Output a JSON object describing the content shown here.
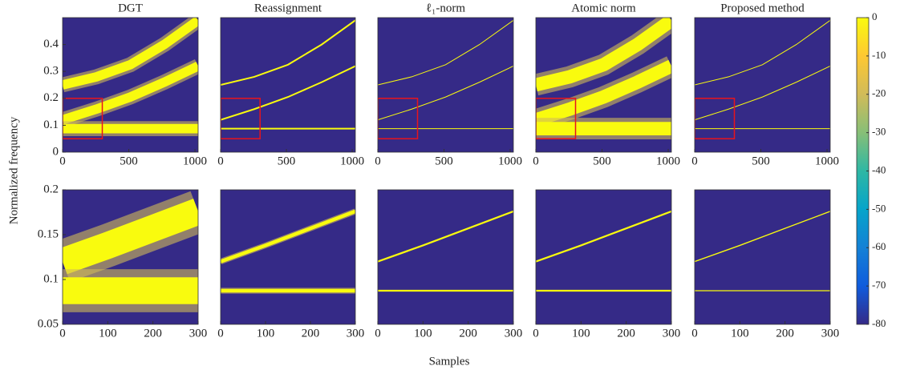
{
  "figure": {
    "xlabel": "Samples",
    "ylabel": "Normalized frequency"
  },
  "colorbar": {
    "clim": [
      -80,
      0
    ],
    "ticks": [
      0,
      -10,
      -20,
      -30,
      -40,
      -50,
      -60,
      -70,
      -80
    ],
    "colormap": [
      "#352a87",
      "#0f5cdd",
      "#1481d6",
      "#06a4ca",
      "#2eb7a4",
      "#87bf77",
      "#d1bb59",
      "#fec832",
      "#f9fb0e"
    ]
  },
  "chart_data": [
    {
      "type": "spectrogram",
      "title": "DGT",
      "xlim": [
        0,
        1024
      ],
      "xticks": [
        0,
        500,
        1000
      ],
      "ylim": [
        0,
        0.5
      ],
      "yticks": [
        0,
        0.1,
        0.2,
        0.3,
        0.4
      ],
      "ridge_width": 0.035,
      "zoom_box": {
        "x": [
          0,
          300
        ],
        "y": [
          0.05,
          0.2
        ]
      },
      "ridges": [
        {
          "x": [
            0,
            256,
            512,
            768,
            1024
          ],
          "y": [
            0.12,
            0.16,
            0.205,
            0.26,
            0.32
          ]
        },
        {
          "x": [
            0,
            256,
            512,
            768,
            1024
          ],
          "y": [
            0.25,
            0.28,
            0.325,
            0.4,
            0.49
          ]
        },
        {
          "x": [
            0,
            1024
          ],
          "y": [
            0.0875,
            0.0875
          ]
        }
      ]
    },
    {
      "type": "spectrogram",
      "title": "Reassignment",
      "xlim": [
        0,
        1024
      ],
      "xticks": [
        0,
        500,
        1000
      ],
      "ylim": [
        0,
        0.5
      ],
      "ridge_width": 0.006,
      "zoom_box": {
        "x": [
          0,
          300
        ],
        "y": [
          0.05,
          0.2
        ]
      },
      "ridges": [
        {
          "x": [
            0,
            256,
            512,
            768,
            1024
          ],
          "y": [
            0.12,
            0.16,
            0.205,
            0.26,
            0.32
          ]
        },
        {
          "x": [
            0,
            256,
            512,
            768,
            1024
          ],
          "y": [
            0.25,
            0.28,
            0.325,
            0.4,
            0.49
          ]
        },
        {
          "x": [
            0,
            1024
          ],
          "y": [
            0.0875,
            0.0875
          ]
        }
      ]
    },
    {
      "type": "spectrogram",
      "title": "ℓ₁-norm",
      "xlim": [
        0,
        1024
      ],
      "xticks": [
        0,
        500,
        1000
      ],
      "ylim": [
        0,
        0.5
      ],
      "ridge_width": 0.003,
      "zoom_box": {
        "x": [
          0,
          300
        ],
        "y": [
          0.05,
          0.2
        ]
      },
      "ridges": [
        {
          "x": [
            0,
            256,
            512,
            768,
            1024
          ],
          "y": [
            0.12,
            0.16,
            0.205,
            0.26,
            0.32
          ]
        },
        {
          "x": [
            0,
            256,
            512,
            768,
            1024
          ],
          "y": [
            0.25,
            0.28,
            0.325,
            0.4,
            0.49
          ]
        },
        {
          "x": [
            0,
            1024
          ],
          "y": [
            0.0875,
            0.0875
          ]
        }
      ]
    },
    {
      "type": "spectrogram",
      "title": "Atomic norm",
      "xlim": [
        0,
        1024
      ],
      "xticks": [
        0,
        500,
        1000
      ],
      "ylim": [
        0,
        0.5
      ],
      "ridge_width": 0.05,
      "zoom_box": {
        "x": [
          0,
          300
        ],
        "y": [
          0.05,
          0.2
        ]
      },
      "ridges": [
        {
          "x": [
            0,
            256,
            512,
            768,
            1024
          ],
          "y": [
            0.12,
            0.16,
            0.205,
            0.26,
            0.32
          ]
        },
        {
          "x": [
            0,
            256,
            512,
            768,
            1024
          ],
          "y": [
            0.25,
            0.28,
            0.325,
            0.4,
            0.49
          ]
        },
        {
          "x": [
            0,
            1024
          ],
          "y": [
            0.0875,
            0.0875
          ]
        }
      ]
    },
    {
      "type": "spectrogram",
      "title": "Proposed method",
      "xlim": [
        0,
        1024
      ],
      "xticks": [
        0,
        500,
        1000
      ],
      "ylim": [
        0,
        0.5
      ],
      "ridge_width": 0.003,
      "zoom_box": {
        "x": [
          0,
          300
        ],
        "y": [
          0.05,
          0.2
        ]
      },
      "ridges": [
        {
          "x": [
            0,
            256,
            512,
            768,
            1024
          ],
          "y": [
            0.12,
            0.16,
            0.205,
            0.26,
            0.32
          ]
        },
        {
          "x": [
            0,
            256,
            512,
            768,
            1024
          ],
          "y": [
            0.25,
            0.28,
            0.325,
            0.4,
            0.49
          ]
        },
        {
          "x": [
            0,
            1024
          ],
          "y": [
            0.0875,
            0.0875
          ]
        }
      ]
    },
    {
      "type": "spectrogram",
      "xlim": [
        0,
        300
      ],
      "xticks": [
        0,
        100,
        200,
        300
      ],
      "ylim": [
        0.05,
        0.2
      ],
      "yticks": [
        0.05,
        0.1,
        0.15,
        0.2
      ],
      "ridge_width": 0.03,
      "ridges": [
        {
          "x": [
            0,
            100,
            200,
            300
          ],
          "y": [
            0.12,
            0.138,
            0.157,
            0.176
          ]
        },
        {
          "x": [
            0,
            300
          ],
          "y": [
            0.0875,
            0.0875
          ]
        }
      ]
    },
    {
      "type": "spectrogram",
      "xlim": [
        0,
        300
      ],
      "xticks": [
        0,
        100,
        200,
        300
      ],
      "ylim": [
        0.05,
        0.2
      ],
      "ridge_width": 0.004,
      "ridges": [
        {
          "x": [
            0,
            100,
            200,
            300
          ],
          "y": [
            0.12,
            0.138,
            0.157,
            0.176
          ]
        },
        {
          "x": [
            0,
            300
          ],
          "y": [
            0.0875,
            0.0875
          ]
        }
      ]
    },
    {
      "type": "spectrogram",
      "xlim": [
        0,
        300
      ],
      "xticks": [
        0,
        100,
        200,
        300
      ],
      "ylim": [
        0.05,
        0.2
      ],
      "ridge_width": 0.002,
      "ridges": [
        {
          "x": [
            0,
            100,
            200,
            300
          ],
          "y": [
            0.12,
            0.138,
            0.157,
            0.176
          ]
        },
        {
          "x": [
            0,
            300
          ],
          "y": [
            0.0875,
            0.0875
          ]
        }
      ]
    },
    {
      "type": "spectrogram",
      "xlim": [
        0,
        300
      ],
      "xticks": [
        0,
        100,
        200,
        300
      ],
      "ylim": [
        0.05,
        0.2
      ],
      "ridge_width": 0.002,
      "ridges": [
        {
          "x": [
            0,
            100,
            200,
            300
          ],
          "y": [
            0.12,
            0.138,
            0.157,
            0.176
          ]
        },
        {
          "x": [
            0,
            300
          ],
          "y": [
            0.0875,
            0.0875
          ]
        }
      ]
    },
    {
      "type": "spectrogram",
      "xlim": [
        0,
        300
      ],
      "xticks": [
        0,
        100,
        200,
        300
      ],
      "ylim": [
        0.05,
        0.2
      ],
      "ridge_width": 0.0012,
      "ridges": [
        {
          "x": [
            0,
            100,
            200,
            300
          ],
          "y": [
            0.12,
            0.138,
            0.157,
            0.176
          ]
        },
        {
          "x": [
            0,
            300
          ],
          "y": [
            0.0875,
            0.0875
          ]
        }
      ]
    }
  ]
}
